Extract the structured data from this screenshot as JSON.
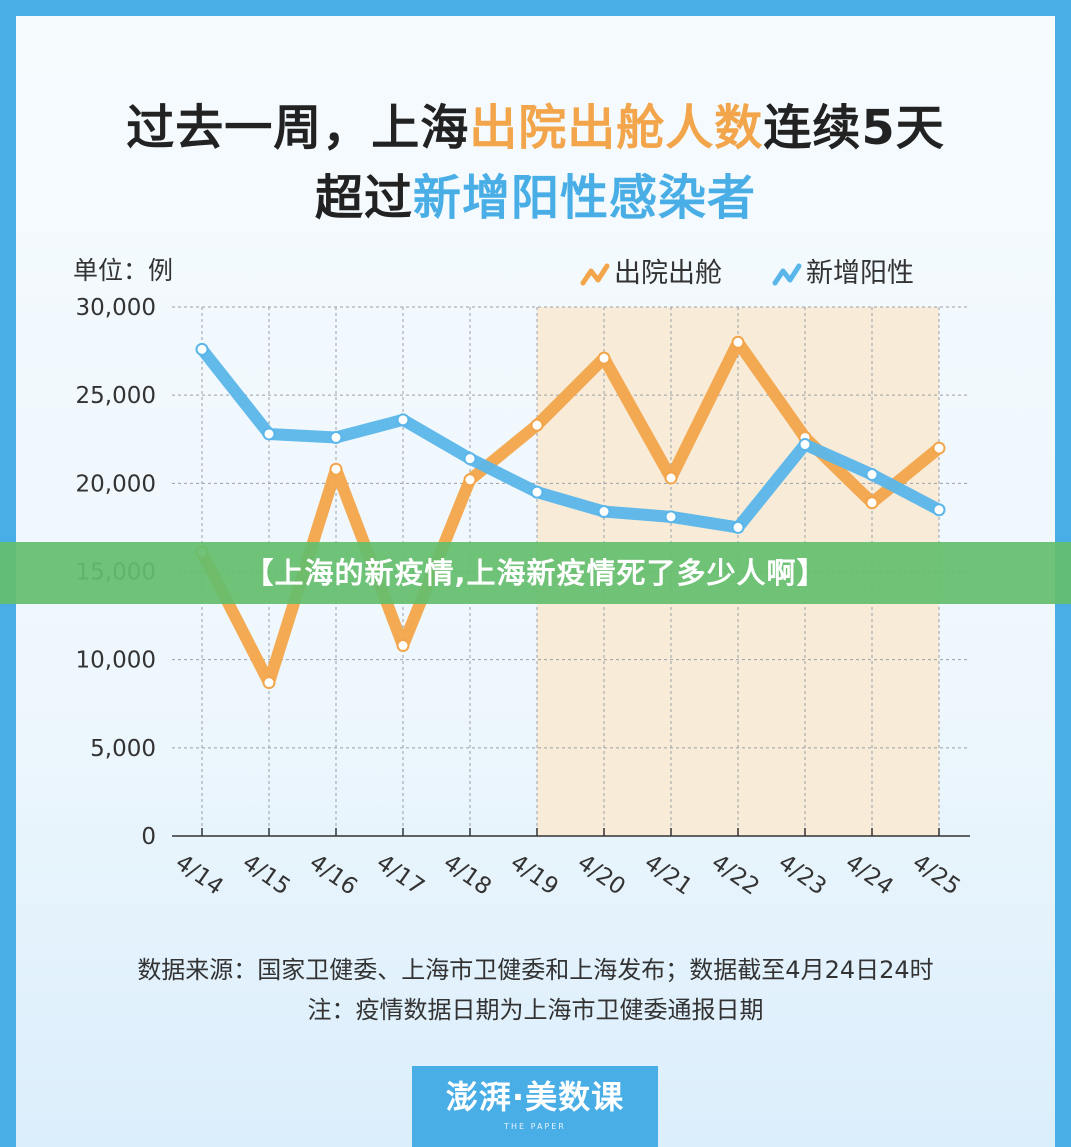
{
  "title_line1": {
    "part1": "过去一周，上海",
    "part2": "出院出舱人数",
    "part3": "连续5天"
  },
  "title_line2": {
    "part1": "超过",
    "part2": "新增阳性感染者"
  },
  "unit_label": "单位：例",
  "source_line": "数据来源：国家卫健委、上海市卫健委和上海发布；数据截至4月24日24时",
  "note_line": "注：疫情数据日期为上海市卫健委通报日期",
  "banner_text": "【上海的新疫情,上海新疫情死了多少人啊】",
  "logo": {
    "brand": "澎湃·美数课",
    "tiny": "THE PAPER"
  },
  "colors": {
    "discharged": "#f2a54a",
    "new_positive": "#5ab6ea",
    "highlight": "#f8ecd9",
    "background_frame": "#4aaee6"
  },
  "chart_data": {
    "type": "line",
    "categories": [
      "4/14",
      "4/15",
      "4/16",
      "4/17",
      "4/18",
      "4/19",
      "4/20",
      "4/21",
      "4/22",
      "4/23",
      "4/24",
      "4/25"
    ],
    "ylim": [
      0,
      30000
    ],
    "yticks": [
      0,
      5000,
      10000,
      15000,
      20000,
      25000,
      30000
    ],
    "ytick_labels": [
      "0",
      "5,000",
      "10,000",
      "15,000",
      "20,000",
      "25,000",
      "30,000"
    ],
    "grid": true,
    "legend_position": "top-right",
    "highlight_range": [
      "4/19",
      "4/25"
    ],
    "series": [
      {
        "name": "出院出舱",
        "color": "#f2a54a",
        "values": [
          16100,
          8700,
          20800,
          10800,
          20200,
          23300,
          27100,
          20300,
          28000,
          22600,
          18900,
          22000
        ]
      },
      {
        "name": "新增阳性",
        "color": "#5ab6ea",
        "values": [
          27600,
          22800,
          22600,
          23600,
          21400,
          19500,
          18400,
          18100,
          17500,
          22200,
          20500,
          18500
        ]
      }
    ]
  }
}
